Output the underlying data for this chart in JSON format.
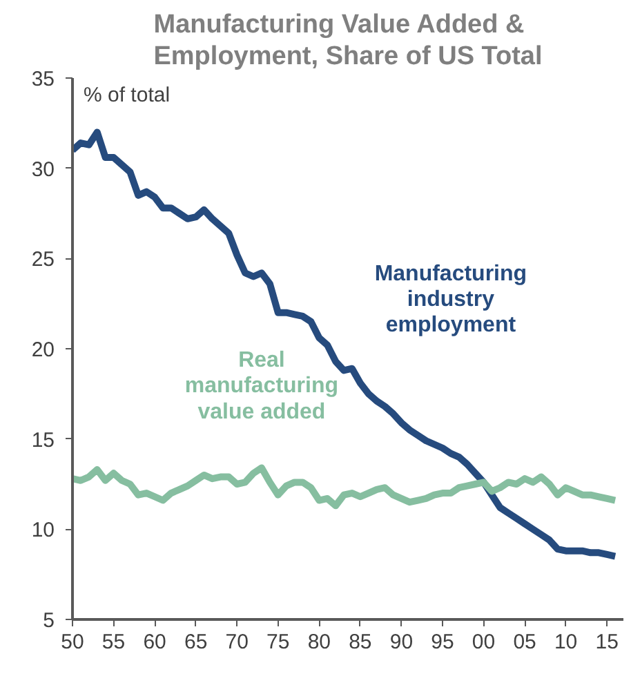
{
  "chart_data": {
    "type": "line",
    "title": "Manufacturing Value Added &\nEmployment, Share of US Total",
    "ylabel": "% of total",
    "x": [
      1950,
      1951,
      1952,
      1953,
      1954,
      1955,
      1956,
      1957,
      1958,
      1959,
      1960,
      1961,
      1962,
      1963,
      1964,
      1965,
      1966,
      1967,
      1968,
      1969,
      1970,
      1971,
      1972,
      1973,
      1974,
      1975,
      1976,
      1977,
      1978,
      1979,
      1980,
      1981,
      1982,
      1983,
      1984,
      1985,
      1986,
      1987,
      1988,
      1989,
      1990,
      1991,
      1992,
      1993,
      1994,
      1995,
      1996,
      1997,
      1998,
      1999,
      2000,
      2001,
      2002,
      2003,
      2004,
      2005,
      2006,
      2007,
      2008,
      2009,
      2010,
      2011,
      2012,
      2013,
      2014,
      2015,
      2016
    ],
    "series": [
      {
        "name": "Manufacturing\nindustry\nemployment",
        "color": "#264b7e",
        "values": [
          31.0,
          31.4,
          31.3,
          32.0,
          30.6,
          30.6,
          30.2,
          29.8,
          28.5,
          28.7,
          28.4,
          27.8,
          27.8,
          27.5,
          27.2,
          27.3,
          27.7,
          27.2,
          26.8,
          26.4,
          25.2,
          24.2,
          24.0,
          24.2,
          23.6,
          22.0,
          22.0,
          21.9,
          21.8,
          21.5,
          20.6,
          20.2,
          19.3,
          18.8,
          18.9,
          18.1,
          17.5,
          17.1,
          16.8,
          16.4,
          15.9,
          15.5,
          15.2,
          14.9,
          14.7,
          14.5,
          14.2,
          14.0,
          13.6,
          13.1,
          12.6,
          11.9,
          11.2,
          10.9,
          10.6,
          10.3,
          10.0,
          9.7,
          9.4,
          8.9,
          8.8,
          8.8,
          8.8,
          8.7,
          8.7,
          8.6,
          8.5
        ]
      },
      {
        "name": "Real\nmanufacturing\nvalue added",
        "color": "#86bea0",
        "values": [
          12.8,
          12.7,
          12.9,
          13.3,
          12.7,
          13.1,
          12.7,
          12.5,
          11.9,
          12.0,
          11.8,
          11.6,
          12.0,
          12.2,
          12.4,
          12.7,
          13.0,
          12.8,
          12.9,
          12.9,
          12.5,
          12.6,
          13.1,
          13.4,
          12.6,
          11.9,
          12.4,
          12.6,
          12.6,
          12.3,
          11.6,
          11.7,
          11.3,
          11.9,
          12.0,
          11.8,
          12.0,
          12.2,
          12.3,
          11.9,
          11.7,
          11.5,
          11.6,
          11.7,
          11.9,
          12.0,
          12.0,
          12.3,
          12.4,
          12.5,
          12.6,
          12.1,
          12.3,
          12.6,
          12.5,
          12.8,
          12.6,
          12.9,
          12.5,
          11.9,
          12.3,
          12.1,
          11.9,
          11.9,
          11.8,
          11.7,
          11.6
        ]
      }
    ],
    "xlim": [
      1950,
      2017
    ],
    "xticks": [
      {
        "value": 1950,
        "label": "50"
      },
      {
        "value": 1955,
        "label": "55"
      },
      {
        "value": 1960,
        "label": "60"
      },
      {
        "value": 1965,
        "label": "65"
      },
      {
        "value": 1970,
        "label": "70"
      },
      {
        "value": 1975,
        "label": "75"
      },
      {
        "value": 1980,
        "label": "80"
      },
      {
        "value": 1985,
        "label": "85"
      },
      {
        "value": 1990,
        "label": "90"
      },
      {
        "value": 1995,
        "label": "95"
      },
      {
        "value": 2000,
        "label": "00"
      },
      {
        "value": 2005,
        "label": "05"
      },
      {
        "value": 2010,
        "label": "10"
      },
      {
        "value": 2015,
        "label": "15"
      }
    ],
    "ylim": [
      5,
      35
    ],
    "yticks": [
      5,
      10,
      15,
      20,
      25,
      30,
      35
    ],
    "grid": false,
    "legend": false,
    "line_style": "solid",
    "marker": "none"
  }
}
